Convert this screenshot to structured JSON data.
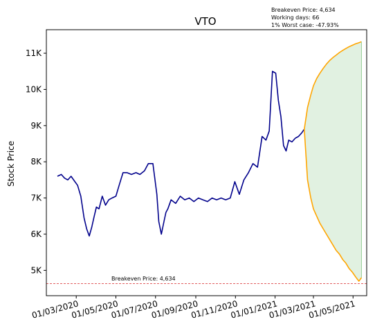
{
  "chart_data": {
    "type": "line",
    "title": "VTO",
    "ylabel": "Stock Price",
    "xlabel": "",
    "xlim": [
      "2020-01-15",
      "2021-05-22"
    ],
    "ylim": [
      4300,
      11650
    ],
    "x_ticks": [
      "01/03/2020",
      "01/05/2020",
      "01/07/2020",
      "01/09/2020",
      "01/11/2020",
      "01/01/2021",
      "01/03/2021",
      "01/05/2021"
    ],
    "y_ticks": [
      {
        "value": 5000,
        "label": "5K"
      },
      {
        "value": 6000,
        "label": "6K"
      },
      {
        "value": 7000,
        "label": "7K"
      },
      {
        "value": 8000,
        "label": "8K"
      },
      {
        "value": 9000,
        "label": "9K"
      },
      {
        "value": 10000,
        "label": "10K"
      },
      {
        "value": 11000,
        "label": "11K"
      }
    ],
    "grid": false,
    "colors": {
      "history": "#00008b",
      "projection": "#ffa500",
      "band": "#c8e6c8",
      "breakeven": "#d62728"
    },
    "history": {
      "x": [
        "2020-02-01",
        "2020-02-07",
        "2020-02-12",
        "2020-02-17",
        "2020-02-22",
        "2020-02-28",
        "2020-03-03",
        "2020-03-08",
        "2020-03-13",
        "2020-03-17",
        "2020-03-21",
        "2020-03-25",
        "2020-03-28",
        "2020-04-01",
        "2020-04-05",
        "2020-04-10",
        "2020-04-15",
        "2020-04-20",
        "2020-04-25",
        "2020-05-01",
        "2020-05-06",
        "2020-05-12",
        "2020-05-18",
        "2020-05-25",
        "2020-06-01",
        "2020-06-07",
        "2020-06-14",
        "2020-06-20",
        "2020-06-27",
        "2020-07-03",
        "2020-07-06",
        "2020-07-10",
        "2020-07-14",
        "2020-07-17",
        "2020-07-20",
        "2020-07-25",
        "2020-08-01",
        "2020-08-08",
        "2020-08-15",
        "2020-08-22",
        "2020-08-29",
        "2020-09-05",
        "2020-09-12",
        "2020-09-19",
        "2020-09-26",
        "2020-10-03",
        "2020-10-10",
        "2020-10-17",
        "2020-10-24",
        "2020-10-31",
        "2020-11-07",
        "2020-11-14",
        "2020-11-21",
        "2020-11-28",
        "2020-12-05",
        "2020-12-12",
        "2020-12-18",
        "2020-12-23",
        "2020-12-28",
        "2021-01-02",
        "2021-01-06",
        "2021-01-10",
        "2021-01-14",
        "2021-01-18",
        "2021-01-22",
        "2021-01-27",
        "2021-02-01",
        "2021-02-06",
        "2021-02-11",
        "2021-02-15"
      ],
      "y": [
        7600,
        7650,
        7550,
        7500,
        7600,
        7450,
        7350,
        7050,
        6450,
        6150,
        5950,
        6200,
        6450,
        6750,
        6700,
        7050,
        6800,
        6950,
        7000,
        7050,
        7350,
        7700,
        7700,
        7650,
        7700,
        7650,
        7750,
        7950,
        7950,
        7100,
        6350,
        6000,
        6350,
        6600,
        6700,
        6950,
        6850,
        7050,
        6950,
        7000,
        6900,
        7000,
        6950,
        6900,
        7000,
        6950,
        7000,
        6950,
        7000,
        7450,
        7100,
        7500,
        7700,
        7950,
        7850,
        8700,
        8600,
        8850,
        10500,
        10450,
        9700,
        9250,
        8450,
        8300,
        8600,
        8550,
        8650,
        8700,
        8800,
        8900
      ]
    },
    "projection": {
      "x": [
        "2021-02-15",
        "2021-02-20",
        "2021-02-25",
        "2021-03-01",
        "2021-03-06",
        "2021-03-11",
        "2021-03-16",
        "2021-03-21",
        "2021-03-26",
        "2021-03-31",
        "2021-04-05",
        "2021-04-10",
        "2021-04-15",
        "2021-04-20",
        "2021-04-25",
        "2021-04-30",
        "2021-05-05",
        "2021-05-10",
        "2021-05-14"
      ],
      "upper": [
        8900,
        9500,
        9850,
        10100,
        10300,
        10450,
        10580,
        10700,
        10800,
        10880,
        10950,
        11020,
        11080,
        11130,
        11180,
        11220,
        11260,
        11290,
        11320
      ],
      "lower": [
        8900,
        7500,
        7000,
        6700,
        6500,
        6300,
        6150,
        6000,
        5850,
        5700,
        5550,
        5450,
        5300,
        5200,
        5050,
        4950,
        4820,
        4700,
        4800
      ]
    },
    "breakeven": {
      "value": 4634,
      "label": "Breakeven Price: 4,634"
    },
    "annotations": [
      "Breakeven Price: 4,634",
      "Working days: 66",
      "1% Worst case: -47.93%"
    ]
  }
}
